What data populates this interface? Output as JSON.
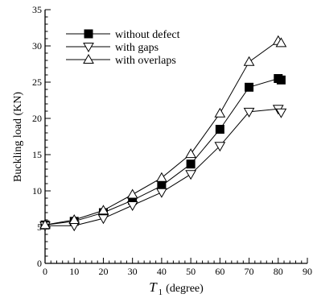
{
  "chart_data": {
    "type": "line",
    "title": "",
    "xlabel": {
      "symbol": "T",
      "subscript": "1",
      "unit": "(degree)"
    },
    "ylabel": "Buckling load (KN)",
    "xlim": [
      0,
      90
    ],
    "ylim": [
      0,
      35
    ],
    "xticks": [
      0,
      10,
      20,
      30,
      40,
      50,
      60,
      70,
      80,
      90
    ],
    "yticks": [
      0,
      5,
      10,
      15,
      20,
      25,
      30,
      35
    ],
    "xtick_labels": [
      "0",
      "10",
      "20",
      "30",
      "40",
      "50",
      "60",
      "70",
      "80",
      "90"
    ],
    "ytick_labels": [
      "0",
      "5",
      "10",
      "15",
      "20",
      "25",
      "30",
      "35"
    ],
    "legend_position": "top-left",
    "grid": false,
    "series": [
      {
        "name": "without defect",
        "marker": "filled-square",
        "color": "#000000",
        "x": [
          0,
          10,
          20,
          30,
          40,
          50,
          60,
          70,
          80,
          81
        ],
        "y": [
          5.3,
          5.8,
          7.0,
          8.7,
          10.7,
          13.7,
          18.5,
          24.3,
          25.5,
          25.3
        ]
      },
      {
        "name": "with gaps",
        "marker": "open-triangle-down",
        "color": "#000000",
        "x": [
          0,
          10,
          20,
          30,
          40,
          50,
          60,
          70,
          80,
          81
        ],
        "y": [
          5.2,
          5.2,
          6.2,
          8.0,
          9.8,
          12.3,
          16.2,
          20.9,
          21.3,
          20.8
        ]
      },
      {
        "name": "with overlaps",
        "marker": "open-triangle-up",
        "color": "#000000",
        "x": [
          0,
          10,
          20,
          30,
          40,
          50,
          60,
          70,
          80,
          81
        ],
        "y": [
          5.3,
          6.0,
          7.3,
          9.5,
          11.8,
          15.1,
          20.7,
          27.8,
          30.7,
          30.4
        ]
      }
    ]
  }
}
